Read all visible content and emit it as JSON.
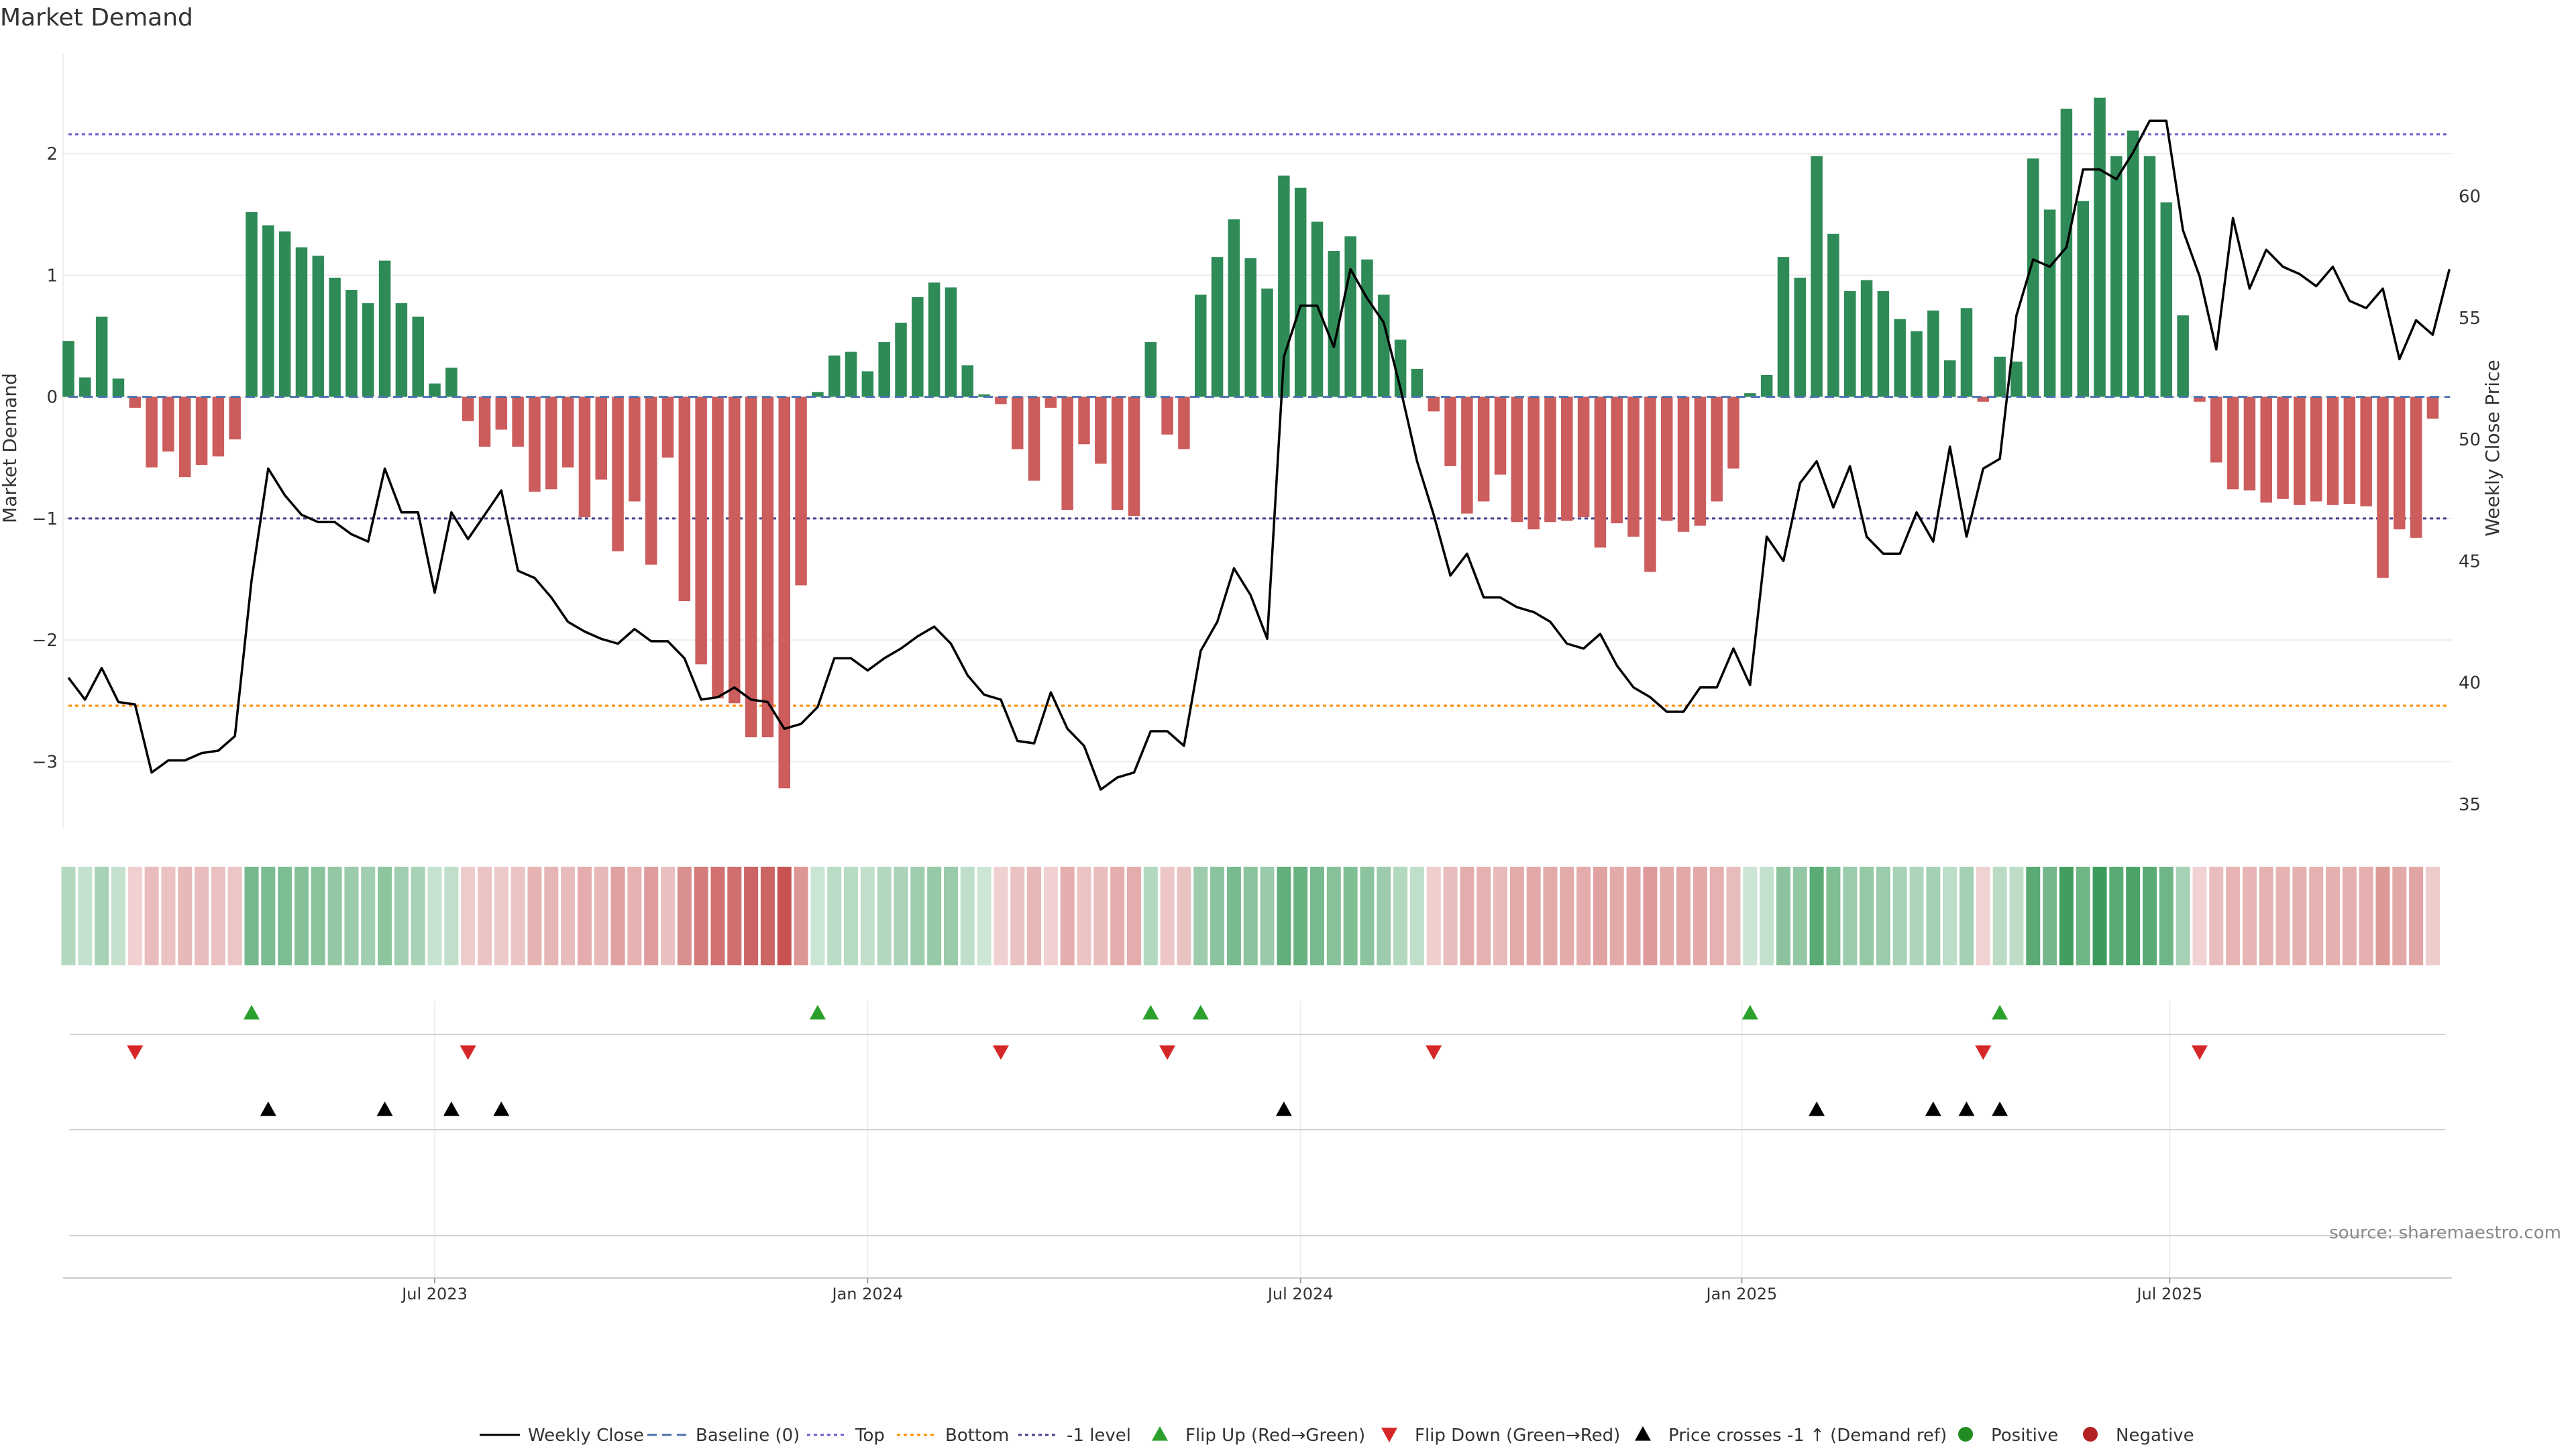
{
  "chart_data": {
    "type": "bar+line",
    "title": "Market Demand",
    "ylabel_left": "Market Demand",
    "ylabel_right": "Weekly Close Price",
    "source": "source: sharemaestro.com",
    "ylim_left": [
      -3.55,
      2.85
    ],
    "ylim_right": [
      34,
      66
    ],
    "yticks_left": [
      {
        "v": 2,
        "t": "2"
      },
      {
        "v": 1,
        "t": "1"
      },
      {
        "v": 0,
        "t": "0"
      },
      {
        "v": -1,
        "t": "−1"
      },
      {
        "v": -2,
        "t": "−2"
      },
      {
        "v": -3,
        "t": "−3"
      }
    ],
    "yticks_right": [
      {
        "v": 60,
        "t": "60"
      },
      {
        "v": 55,
        "t": "55"
      },
      {
        "v": 50,
        "t": "50"
      },
      {
        "v": 45,
        "t": "45"
      },
      {
        "v": 40,
        "t": "40"
      },
      {
        "v": 35,
        "t": "35"
      }
    ],
    "xticks": [
      {
        "i": 22,
        "t": "Jul 2023"
      },
      {
        "i": 48,
        "t": "Jan 2024"
      },
      {
        "i": 74,
        "t": "Jul 2024"
      },
      {
        "i": 100.5,
        "t": "Jan 2025"
      },
      {
        "i": 126.2,
        "t": "Jul 2025"
      }
    ],
    "top_level": 2.16,
    "bottom_level": -2.54,
    "minus1_level": -1,
    "demand": [
      0.46,
      0.16,
      0.66,
      0.15,
      -0.09,
      -0.58,
      -0.45,
      -0.66,
      -0.56,
      -0.49,
      -0.35,
      1.52,
      1.41,
      1.36,
      1.23,
      1.16,
      0.98,
      0.88,
      0.77,
      1.12,
      0.77,
      0.66,
      0.11,
      0.24,
      -0.2,
      -0.41,
      -0.27,
      -0.41,
      -0.78,
      -0.76,
      -0.58,
      -0.99,
      -0.68,
      -1.27,
      -0.86,
      -1.38,
      -0.5,
      -1.68,
      -2.2,
      -2.48,
      -2.52,
      -2.8,
      -2.8,
      -3.22,
      -1.55,
      0.04,
      0.34,
      0.37,
      0.21,
      0.45,
      0.61,
      0.82,
      0.94,
      0.9,
      0.26,
      0.02,
      -0.06,
      -0.43,
      -0.69,
      -0.09,
      -0.93,
      -0.39,
      -0.55,
      -0.93,
      -0.98,
      0.45,
      -0.31,
      -0.43,
      0.84,
      1.15,
      1.46,
      1.14,
      0.89,
      1.82,
      1.72,
      1.44,
      1.2,
      1.32,
      1.13,
      0.84,
      0.47,
      0.23,
      -0.12,
      -0.57,
      -0.96,
      -0.86,
      -0.64,
      -1.03,
      -1.09,
      -1.03,
      -1.02,
      -0.99,
      -1.24,
      -1.04,
      -1.15,
      -1.44,
      -1.02,
      -1.11,
      -1.06,
      -0.86,
      -0.59,
      0.03,
      0.18,
      1.15,
      0.98,
      1.98,
      1.34,
      0.87,
      0.96,
      0.87,
      0.64,
      0.54,
      0.71,
      0.3,
      0.73,
      -0.04,
      0.33,
      0.29,
      1.96,
      1.54,
      2.37,
      1.61,
      2.46,
      1.98,
      2.19,
      1.98,
      1.6,
      0.67,
      -0.04,
      -0.54,
      -0.76,
      -0.77,
      -0.87,
      -0.84,
      -0.89,
      -0.86,
      -0.89,
      -0.88,
      -0.9,
      -1.49,
      -1.09,
      -1.16,
      -0.18
    ],
    "close": [
      40.2,
      39.3,
      40.6,
      39.2,
      39.1,
      36.3,
      36.8,
      36.8,
      37.1,
      37.2,
      37.8,
      44.2,
      48.8,
      47.7,
      46.9,
      46.6,
      46.6,
      46.1,
      45.8,
      48.8,
      47.0,
      47.0,
      43.7,
      47.0,
      45.9,
      46.9,
      47.9,
      44.6,
      44.3,
      43.5,
      42.5,
      42.1,
      41.8,
      41.6,
      42.2,
      41.7,
      41.7,
      41.0,
      39.3,
      39.4,
      39.8,
      39.3,
      39.2,
      38.1,
      38.3,
      39.0,
      41.0,
      41.0,
      40.5,
      41.0,
      41.4,
      41.9,
      42.3,
      41.6,
      40.3,
      39.5,
      39.3,
      37.6,
      37.5,
      39.6,
      38.1,
      37.4,
      35.6,
      36.1,
      36.3,
      38.0,
      38.0,
      37.4,
      41.3,
      42.5,
      44.7,
      43.6,
      41.8,
      53.4,
      55.5,
      55.5,
      53.8,
      57.0,
      55.8,
      54.8,
      52.1,
      49.1,
      46.9,
      44.4,
      45.3,
      43.5,
      43.5,
      43.1,
      42.9,
      42.5,
      41.6,
      41.4,
      42.0,
      40.7,
      39.8,
      39.4,
      38.8,
      38.8,
      39.8,
      39.8,
      41.4,
      39.9,
      46.0,
      45.0,
      48.2,
      49.1,
      47.2,
      48.9,
      46.0,
      45.3,
      45.3,
      47.0,
      45.8,
      49.7,
      46.0,
      48.8,
      49.2,
      55.1,
      57.4,
      57.1,
      57.9,
      61.1,
      61.1,
      60.7,
      61.8,
      63.1,
      63.1,
      58.6,
      56.7,
      53.7,
      59.1,
      56.2,
      57.8,
      57.1,
      56.8,
      56.3,
      57.1,
      55.7,
      55.4,
      56.2,
      53.3,
      54.9,
      54.3,
      57.0
    ],
    "flip_up": [
      11,
      45,
      65,
      68,
      101,
      116
    ],
    "flip_down": [
      4,
      24,
      56,
      66,
      82,
      115,
      128
    ],
    "price_cross": [
      12,
      19,
      23,
      26,
      73,
      105,
      112,
      114,
      116
    ],
    "legend": [
      "Weekly Close",
      "Baseline (0)",
      "Top",
      "Bottom",
      "-1 level",
      "Flip Up (Red→Green)",
      "Flip Down (Green→Red)",
      "Price crosses -1 ↑ (Demand ref)",
      "Positive",
      "Negative"
    ],
    "colors": {
      "positive": "#2e8b57",
      "negative": "#cd5c5c",
      "close": "#000000",
      "baseline": "#4c72b0",
      "top": "#6a5acd",
      "bottom": "#ff8c00",
      "minus1": "#483d8b",
      "flip_up": "#2ca02c",
      "flip_down": "#d62728",
      "price_cross": "#000000",
      "legend_pos": "#228b22",
      "legend_neg": "#b22222"
    }
  }
}
